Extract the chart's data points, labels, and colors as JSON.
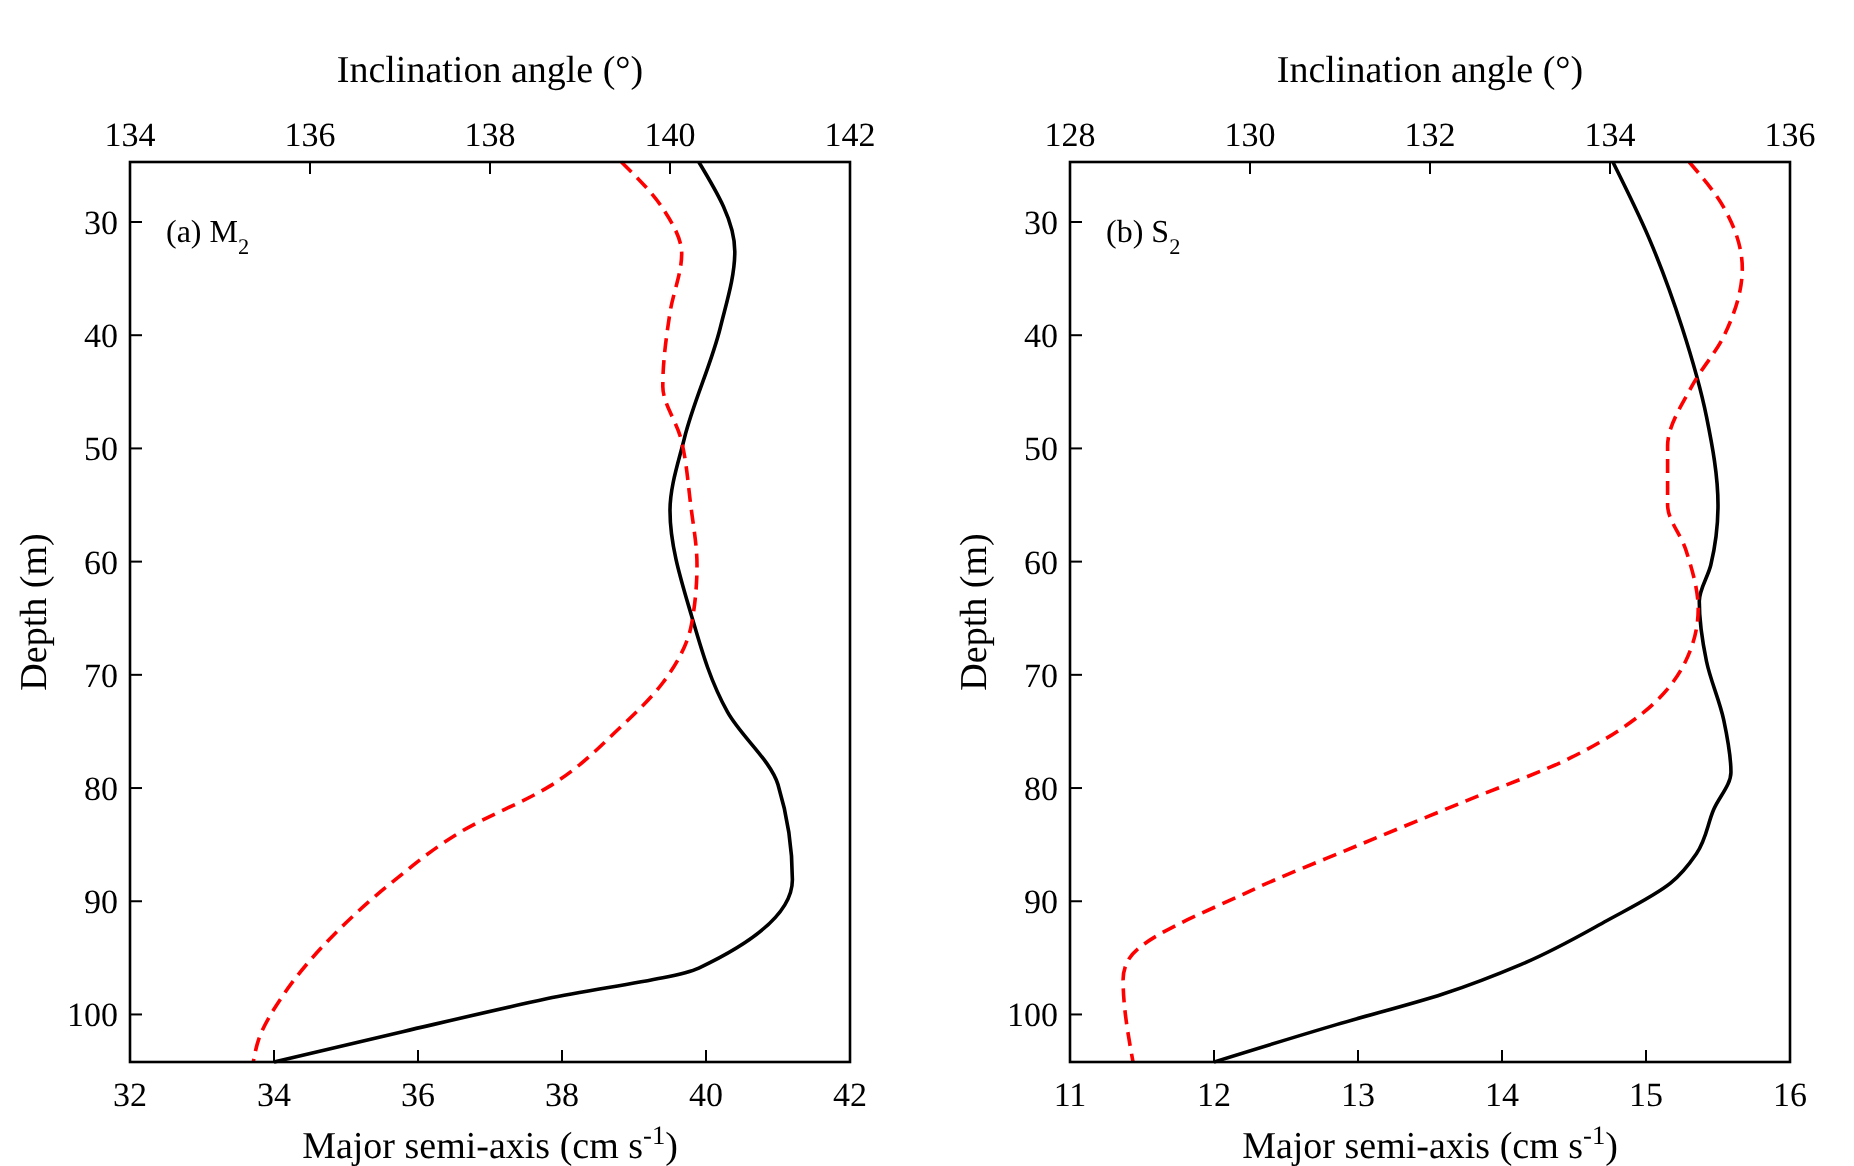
{
  "chart_data": [
    {
      "type": "line",
      "annotations": [
        "(a) M$_{2}$"
      ],
      "xlabel": "Major semi-axis (cm s$^{-1}$)",
      "x2label": "Inclination angle (°)",
      "ylabel": "Depth (m)",
      "xlim": [
        32,
        42
      ],
      "xticks": [
        32,
        34,
        36,
        38,
        40,
        42
      ],
      "x2lim": [
        134,
        142
      ],
      "x2ticks": [
        134,
        136,
        138,
        140,
        142
      ],
      "ylim": [
        104.2,
        24.7
      ],
      "yticks": [
        30,
        40,
        50,
        60,
        70,
        80,
        90,
        100
      ],
      "series": [
        {
          "color": "#000000",
          "line_style": "solid",
          "x": [
            39.9,
            40.4,
            40.2,
            39.7,
            39.5,
            39.8,
            40.3,
            41.0,
            41.2,
            39.9,
            37.8,
            35.8,
            34.0
          ],
          "values": [
            24.7,
            32.6,
            39.3,
            49.1,
            55.5,
            64.8,
            73.3,
            79.7,
            88.1,
            95.9,
            98.6,
            101.5,
            104.2
          ]
        },
        {
          "color": "#ff0000",
          "line_style": "dashed",
          "axis": "x2",
          "x": [
            139.46,
            139.92,
            140.13,
            140.0,
            139.92,
            140.12,
            140.23,
            140.3,
            140.24,
            139.92,
            139.44,
            138.65,
            137.69,
            136.9,
            136.26,
            135.71,
            135.43,
            135.37
          ],
          "values": [
            24.7,
            28.8,
            32.8,
            38.0,
            44.5,
            49.1,
            55.0,
            60.3,
            65.5,
            70.7,
            74.7,
            79.9,
            83.8,
            88.4,
            93.0,
            98.2,
            102.2,
            104.2
          ]
        }
      ]
    },
    {
      "type": "line",
      "annotations": [
        "(b) S$_{2}$"
      ],
      "xlabel": "Major semi-axis (cm s$^{-1}$)",
      "x2label": "Inclination angle (°)",
      "ylabel": "Depth (m)",
      "xlim": [
        11,
        16
      ],
      "xticks": [
        11,
        12,
        13,
        14,
        15,
        16
      ],
      "x2lim": [
        128,
        136
      ],
      "x2ticks": [
        128,
        130,
        132,
        134,
        136
      ],
      "ylim": [
        104.2,
        24.7
      ],
      "yticks": [
        30,
        40,
        50,
        60,
        70,
        80,
        90,
        100
      ],
      "series": [
        {
          "color": "#000000",
          "line_style": "solid",
          "x": [
            14.77,
            15.02,
            15.25,
            15.42,
            15.5,
            15.45,
            15.37,
            15.42,
            15.54,
            15.59,
            15.47,
            15.35,
            15.17,
            14.73,
            14.13,
            13.59,
            12.85,
            12.0
          ],
          "values": [
            24.7,
            31.4,
            39.3,
            47.2,
            55.0,
            60.3,
            63.5,
            68.8,
            74.0,
            78.6,
            81.9,
            85.8,
            88.4,
            91.7,
            95.6,
            98.2,
            100.9,
            104.2
          ]
        },
        {
          "color": "#ff0000",
          "line_style": "dashed",
          "axis": "x2",
          "x": [
            134.88,
            135.27,
            135.47,
            135.27,
            134.91,
            134.64,
            134.64,
            134.84,
            134.98,
            134.84,
            134.36,
            133.57,
            132.38,
            131.19,
            130.0,
            128.64,
            128.59,
            128.7
          ],
          "values": [
            24.7,
            28.8,
            34.1,
            40.0,
            44.5,
            49.8,
            55.0,
            58.9,
            64.2,
            68.8,
            73.4,
            77.3,
            81.2,
            85.1,
            89.1,
            95.3,
            96.9,
            104.2
          ]
        }
      ]
    }
  ]
}
